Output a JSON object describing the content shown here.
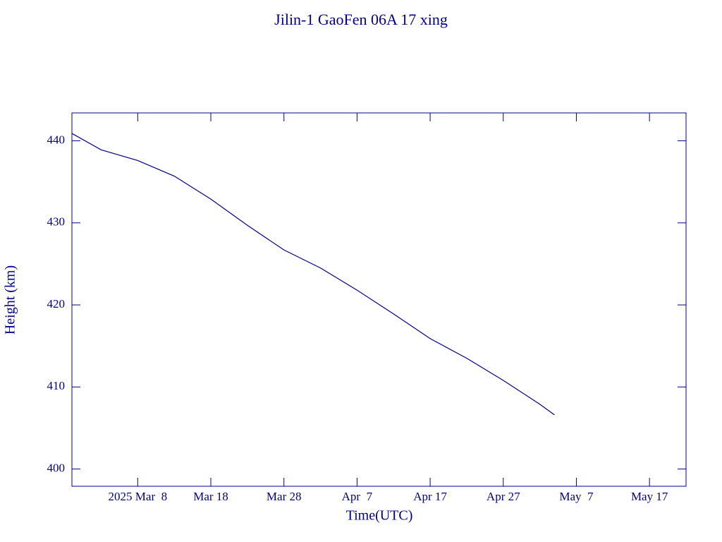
{
  "chart_data": {
    "type": "line",
    "title": "Jilin-1 GaoFen 06A 17 xing",
    "x_label": "Time(UTC)",
    "y_label": "Height (km)",
    "x": [
      "2025-02-27",
      "2025-03-03",
      "2025-03-08",
      "2025-03-13",
      "2025-03-18",
      "2025-03-23",
      "2025-03-28",
      "2025-04-02",
      "2025-04-07",
      "2025-04-12",
      "2025-04-17",
      "2025-04-22",
      "2025-04-27",
      "2025-05-02",
      "2025-05-04"
    ],
    "series": [
      {
        "name": "Height",
        "color": "#00008b",
        "values": [
          440.9,
          438.9,
          437.6,
          435.7,
          432.9,
          429.7,
          426.7,
          424.5,
          421.8,
          418.9,
          415.9,
          413.5,
          410.8,
          407.9,
          406.6
        ]
      }
    ],
    "xlim": [
      "2025-02-27",
      "2025-05-22"
    ],
    "xticks": [
      {
        "value": "2025-03-08",
        "label": "2025 Mar  8"
      },
      {
        "value": "2025-03-18",
        "label": "Mar 18"
      },
      {
        "value": "2025-03-28",
        "label": "Mar 28"
      },
      {
        "value": "2025-04-07",
        "label": "Apr  7"
      },
      {
        "value": "2025-04-17",
        "label": "Apr 17"
      },
      {
        "value": "2025-04-27",
        "label": "Apr 27"
      },
      {
        "value": "2025-05-07",
        "label": "May  7"
      },
      {
        "value": "2025-05-17",
        "label": "May 17"
      }
    ],
    "ylim": [
      397.9,
      443.4
    ],
    "yticks": [
      400,
      410,
      420,
      430,
      440
    ],
    "grid": false
  }
}
